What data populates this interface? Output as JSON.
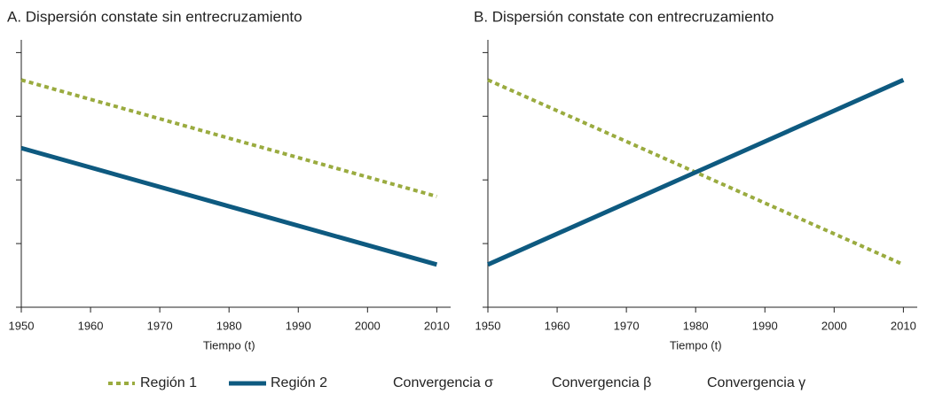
{
  "chart_data": [
    {
      "type": "line",
      "title": "A. Dispersión constate sin entrecruzamiento",
      "xlabel": "Tiempo (t)",
      "x": [
        1950,
        2010
      ],
      "xlim": [
        1950,
        2012
      ],
      "xticks": [
        1950,
        1960,
        1970,
        1980,
        1990,
        2000,
        2010
      ],
      "ylim": [
        0,
        4.2
      ],
      "yticks": [
        0,
        1,
        2,
        3,
        4
      ],
      "series": [
        {
          "name": "Región 1",
          "color": "#9aab3f",
          "dash": true,
          "values": [
            3.57,
            1.74
          ]
        },
        {
          "name": "Región 2",
          "color": "#0e5a80",
          "dash": false,
          "values": [
            2.5,
            0.67
          ]
        }
      ]
    },
    {
      "type": "line",
      "title": "B. Dispersión constate con entrecruzamiento",
      "xlabel": "Tiempo (t)",
      "x": [
        1950,
        2010
      ],
      "xlim": [
        1950,
        2012
      ],
      "xticks": [
        1950,
        1960,
        1970,
        1980,
        1990,
        2000,
        2010
      ],
      "ylim": [
        0,
        4.2
      ],
      "yticks": [
        0,
        1,
        2,
        3,
        4
      ],
      "series": [
        {
          "name": "Región 1",
          "color": "#9aab3f",
          "dash": true,
          "values": [
            3.57,
            0.67
          ]
        },
        {
          "name": "Región 2",
          "color": "#0e5a80",
          "dash": false,
          "values": [
            0.67,
            3.57
          ]
        }
      ]
    }
  ],
  "legend_notes": [
    "Convergencia σ",
    "Convergencia β",
    "Convergencia γ"
  ]
}
